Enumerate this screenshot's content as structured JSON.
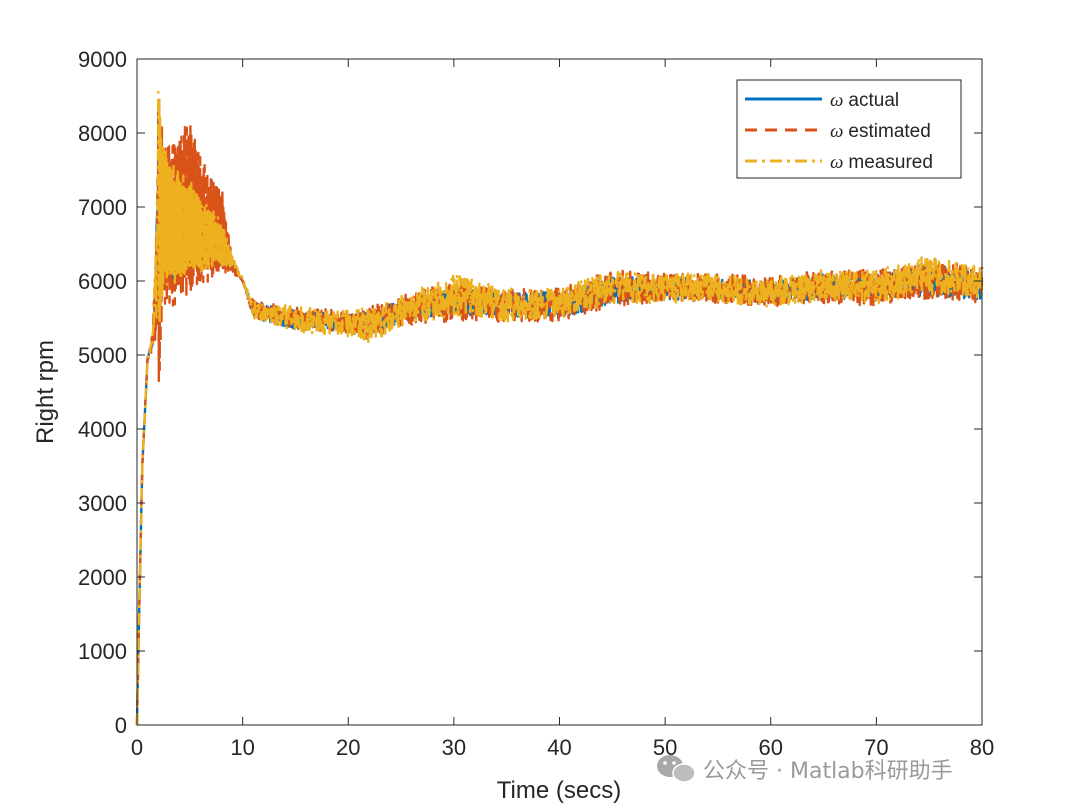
{
  "chart_data": {
    "type": "line",
    "title": "",
    "xlabel": "Time (secs)",
    "ylabel": "Right rpm",
    "xlim": [
      0,
      80
    ],
    "ylim": [
      0,
      9000
    ],
    "xticks": [
      0,
      10,
      20,
      30,
      40,
      50,
      60,
      70,
      80
    ],
    "yticks": [
      0,
      1000,
      2000,
      3000,
      4000,
      5000,
      6000,
      7000,
      8000,
      9000
    ],
    "grid": false,
    "legend_position": "top-right",
    "legend_prefix": "ω",
    "series": [
      {
        "name": "actual",
        "color": "#0072BD",
        "style": "solid",
        "envelope_x": [
          0,
          0.2,
          0.5,
          1,
          1.5,
          2,
          2.5,
          3,
          4,
          5,
          6,
          7,
          8,
          9,
          10,
          11,
          15,
          20,
          22,
          25,
          30,
          35,
          40,
          45,
          50,
          55,
          60,
          65,
          70,
          75,
          80
        ],
        "envelope_low": [
          0,
          1500,
          3500,
          4900,
          5100,
          5200,
          6000,
          5900,
          6100,
          6100,
          6100,
          6200,
          6200,
          6200,
          6000,
          5500,
          5350,
          5300,
          5250,
          5450,
          5550,
          5500,
          5500,
          5700,
          5750,
          5750,
          5700,
          5750,
          5750,
          5800,
          5750
        ],
        "envelope_high": [
          0,
          1500,
          3500,
          5000,
          5300,
          8500,
          7600,
          7400,
          7300,
          7200,
          7000,
          6900,
          6700,
          6300,
          6000,
          5700,
          5600,
          5550,
          5600,
          5750,
          5900,
          5850,
          5850,
          6050,
          6050,
          6050,
          6000,
          6100,
          6100,
          6250,
          6100
        ]
      },
      {
        "name": "estimated",
        "color": "#D95319",
        "style": "dashed",
        "envelope_x": [
          0,
          0.2,
          0.5,
          1,
          1.5,
          2,
          2.5,
          3,
          4,
          5,
          6,
          7,
          8,
          9,
          10,
          11,
          15,
          20,
          22,
          25,
          30,
          35,
          40,
          45,
          50,
          55,
          60,
          65,
          70,
          75,
          80
        ],
        "envelope_low": [
          0,
          1500,
          3500,
          4900,
          5000,
          4400,
          5700,
          5600,
          5700,
          5800,
          5900,
          6000,
          6100,
          6100,
          6000,
          5500,
          5350,
          5300,
          5200,
          5400,
          5450,
          5450,
          5450,
          5650,
          5700,
          5700,
          5650,
          5700,
          5650,
          5750,
          5700
        ],
        "envelope_high": [
          0,
          1500,
          3500,
          5000,
          5400,
          8800,
          8000,
          7900,
          8100,
          8200,
          7700,
          7400,
          7300,
          6300,
          6000,
          5750,
          5650,
          5600,
          5650,
          5800,
          6000,
          5900,
          5900,
          6150,
          6100,
          6100,
          6050,
          6150,
          6150,
          6300,
          6200
        ]
      },
      {
        "name": "measured",
        "color": "#EDB120",
        "style": "dash-dot",
        "envelope_x": [
          0,
          0.2,
          0.5,
          1,
          1.5,
          2,
          2.5,
          3,
          4,
          5,
          6,
          7,
          8,
          9,
          10,
          11,
          15,
          20,
          22,
          25,
          30,
          35,
          40,
          45,
          50,
          55,
          60,
          65,
          70,
          75,
          80
        ],
        "envelope_low": [
          0,
          1500,
          3500,
          4900,
          5100,
          5000,
          6000,
          5900,
          6000,
          6100,
          6100,
          6200,
          6200,
          6200,
          6000,
          5500,
          5300,
          5250,
          5150,
          5400,
          5500,
          5450,
          5500,
          5700,
          5700,
          5700,
          5650,
          5750,
          5700,
          5800,
          5750
        ],
        "envelope_high": [
          0,
          1500,
          3500,
          5000,
          5350,
          8700,
          7900,
          7600,
          7500,
          7400,
          7100,
          7000,
          6800,
          6350,
          6050,
          5750,
          5650,
          5600,
          5650,
          5800,
          6100,
          5900,
          5900,
          6150,
          6100,
          6100,
          6050,
          6150,
          6150,
          6350,
          6200
        ]
      }
    ]
  },
  "watermark": {
    "text": "公众号 · Matlab科研助手",
    "icon": "wechat-icon"
  }
}
